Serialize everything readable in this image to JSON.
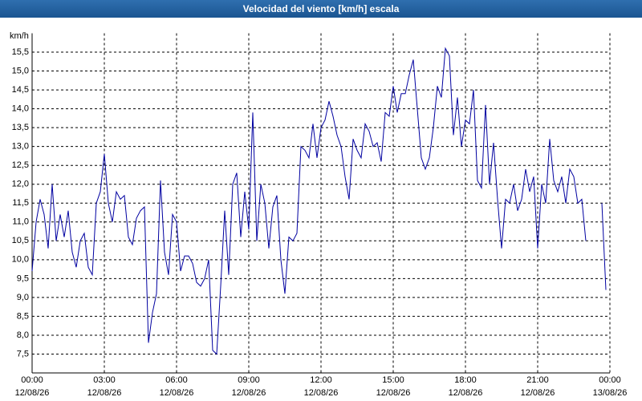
{
  "chart_data": {
    "type": "line",
    "title": "Velocidad del viento [km/h] escala",
    "y_label": "km/h",
    "xlim": [
      0,
      1440
    ],
    "ylim": [
      7,
      16
    ],
    "xticks": [
      {
        "value": 0,
        "label": "00:00",
        "date": "12/08/26"
      },
      {
        "value": 180,
        "label": "03:00",
        "date": "12/08/26"
      },
      {
        "value": 360,
        "label": "06:00",
        "date": "12/08/26"
      },
      {
        "value": 540,
        "label": "09:00",
        "date": "12/08/26"
      },
      {
        "value": 720,
        "label": "12:00",
        "date": "12/08/26"
      },
      {
        "value": 900,
        "label": "15:00",
        "date": "12/08/26"
      },
      {
        "value": 1080,
        "label": "18:00",
        "date": "12/08/26"
      },
      {
        "value": 1260,
        "label": "21:00",
        "date": "12/08/26"
      },
      {
        "value": 1440,
        "label": "00:00",
        "date": "13/08/26"
      }
    ],
    "yticks": [
      {
        "value": 7.5,
        "label": "7,5"
      },
      {
        "value": 8,
        "label": "8,0"
      },
      {
        "value": 8.5,
        "label": "8,5"
      },
      {
        "value": 9,
        "label": "9,0"
      },
      {
        "value": 9.5,
        "label": "9,5"
      },
      {
        "value": 10,
        "label": "10,0"
      },
      {
        "value": 10.5,
        "label": "10,5"
      },
      {
        "value": 11,
        "label": "11,0"
      },
      {
        "value": 11.5,
        "label": "11,5"
      },
      {
        "value": 12,
        "label": "12,0"
      },
      {
        "value": 12.5,
        "label": "12,5"
      },
      {
        "value": 13,
        "label": "13,0"
      },
      {
        "value": 13.5,
        "label": "13,5"
      },
      {
        "value": 14,
        "label": "14,0"
      },
      {
        "value": 14.5,
        "label": "14,5"
      },
      {
        "value": 15,
        "label": "15,0"
      },
      {
        "value": 15.5,
        "label": "15,5"
      }
    ],
    "grid": true,
    "x": [
      0,
      10,
      20,
      30,
      40,
      50,
      60,
      70,
      80,
      90,
      100,
      110,
      120,
      130,
      140,
      150,
      160,
      170,
      180,
      190,
      200,
      210,
      220,
      230,
      240,
      250,
      260,
      270,
      280,
      290,
      300,
      310,
      320,
      330,
      340,
      350,
      360,
      370,
      380,
      390,
      400,
      410,
      420,
      430,
      440,
      450,
      460,
      470,
      480,
      490,
      500,
      510,
      520,
      530,
      540,
      550,
      560,
      570,
      580,
      590,
      600,
      610,
      620,
      630,
      640,
      650,
      660,
      670,
      680,
      690,
      700,
      710,
      720,
      730,
      740,
      750,
      760,
      770,
      780,
      790,
      800,
      810,
      820,
      830,
      840,
      850,
      860,
      870,
      880,
      890,
      900,
      910,
      920,
      930,
      940,
      950,
      960,
      970,
      980,
      990,
      1000,
      1010,
      1020,
      1030,
      1040,
      1050,
      1060,
      1070,
      1080,
      1090,
      1100,
      1110,
      1120,
      1130,
      1140,
      1150,
      1160,
      1170,
      1180,
      1190,
      1200,
      1210,
      1220,
      1230,
      1240,
      1250,
      1260,
      1270,
      1280,
      1290,
      1300,
      1310,
      1320,
      1330,
      1340,
      1350,
      1360,
      1370,
      1380,
      1390,
      1400,
      1410,
      1420,
      1430
    ],
    "series": [
      {
        "color": "#0000a0",
        "values": [
          9.7,
          11.0,
          11.6,
          11.2,
          10.3,
          12.0,
          10.5,
          11.2,
          10.6,
          11.3,
          10.2,
          9.8,
          10.5,
          10.7,
          9.8,
          9.6,
          11.5,
          11.8,
          12.8,
          11.5,
          11.0,
          11.8,
          11.6,
          11.7,
          10.6,
          10.4,
          11.1,
          11.3,
          11.4,
          7.8,
          8.6,
          9.1,
          12.1,
          10.2,
          9.6,
          11.2,
          11.0,
          9.7,
          10.1,
          10.1,
          9.9,
          9.4,
          9.3,
          9.5,
          10.0,
          7.6,
          7.5,
          9.3,
          11.3,
          9.6,
          12.0,
          12.3,
          10.6,
          11.8,
          10.8,
          13.9,
          10.5,
          12.0,
          11.5,
          10.3,
          11.4,
          11.7,
          10.0,
          9.1,
          10.6,
          10.5,
          10.7,
          13.0,
          12.9,
          12.7,
          13.6,
          12.7,
          13.5,
          13.7,
          14.2,
          13.8,
          13.3,
          13.0,
          12.2,
          11.6,
          13.2,
          12.9,
          12.7,
          13.6,
          13.4,
          13.0,
          13.1,
          12.6,
          13.9,
          13.8,
          14.6,
          13.9,
          14.4,
          14.4,
          14.9,
          15.3,
          14.0,
          12.7,
          12.4,
          12.7,
          13.5,
          14.6,
          14.3,
          15.6,
          15.4,
          13.3,
          14.3,
          13.0,
          13.7,
          13.6,
          14.5,
          12.1,
          11.9,
          14.1,
          12.0,
          13.1,
          11.6,
          10.3,
          11.6,
          11.5,
          12.0,
          11.3,
          11.6,
          12.4,
          11.8,
          12.2,
          10.3,
          12.0,
          11.5,
          13.2,
          12.1,
          11.8,
          12.2,
          11.5,
          12.4,
          12.2,
          11.5,
          11.6,
          10.5,
          null,
          null,
          null,
          11.5,
          9.2
        ]
      }
    ]
  }
}
